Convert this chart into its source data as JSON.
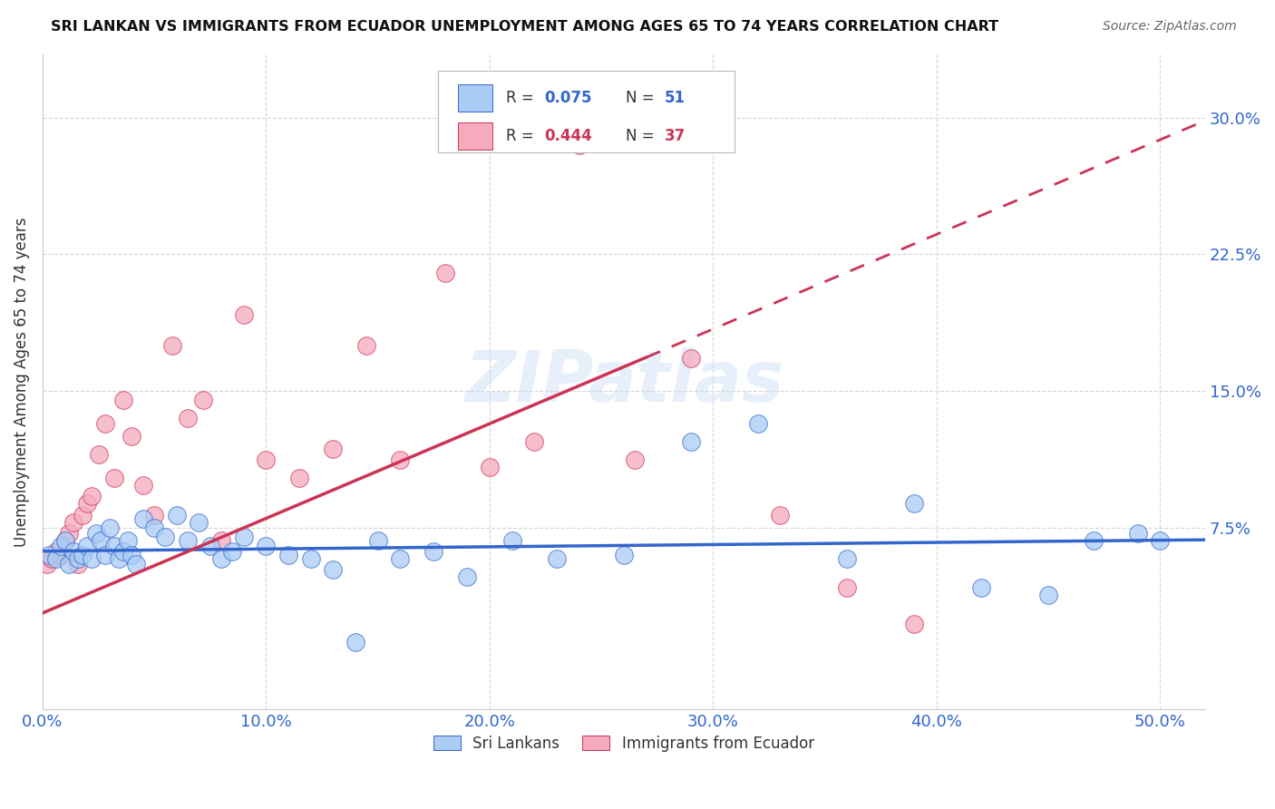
{
  "title": "SRI LANKAN VS IMMIGRANTS FROM ECUADOR UNEMPLOYMENT AMONG AGES 65 TO 74 YEARS CORRELATION CHART",
  "source": "Source: ZipAtlas.com",
  "ylabel": "Unemployment Among Ages 65 to 74 years",
  "xlim": [
    0.0,
    0.52
  ],
  "ylim": [
    -0.025,
    0.335
  ],
  "xticks": [
    0.0,
    0.1,
    0.2,
    0.3,
    0.4,
    0.5
  ],
  "xticklabels": [
    "0.0%",
    "10.0%",
    "20.0%",
    "30.0%",
    "40.0%",
    "50.0%"
  ],
  "yticks": [
    0.075,
    0.15,
    0.225,
    0.3
  ],
  "yticklabels": [
    "7.5%",
    "15.0%",
    "22.5%",
    "30.0%"
  ],
  "sri_lankan_color": "#aaccf5",
  "ecuador_color": "#f5aabe",
  "sri_lankan_line_color": "#3366cc",
  "ecuador_line_color": "#cc3355",
  "watermark": "ZIPatlas",
  "legend_label1": "Sri Lankans",
  "legend_label2": "Immigrants from Ecuador",
  "sri_lankans_x": [
    0.003,
    0.006,
    0.008,
    0.01,
    0.012,
    0.014,
    0.016,
    0.018,
    0.02,
    0.022,
    0.024,
    0.026,
    0.028,
    0.03,
    0.032,
    0.034,
    0.036,
    0.038,
    0.04,
    0.042,
    0.045,
    0.05,
    0.055,
    0.06,
    0.065,
    0.07,
    0.075,
    0.08,
    0.085,
    0.09,
    0.1,
    0.11,
    0.12,
    0.13,
    0.14,
    0.15,
    0.16,
    0.175,
    0.19,
    0.21,
    0.23,
    0.26,
    0.29,
    0.32,
    0.36,
    0.39,
    0.42,
    0.45,
    0.47,
    0.49,
    0.5
  ],
  "sri_lankans_y": [
    0.06,
    0.058,
    0.065,
    0.068,
    0.055,
    0.062,
    0.058,
    0.06,
    0.065,
    0.058,
    0.072,
    0.068,
    0.06,
    0.075,
    0.065,
    0.058,
    0.062,
    0.068,
    0.06,
    0.055,
    0.08,
    0.075,
    0.07,
    0.082,
    0.068,
    0.078,
    0.065,
    0.058,
    0.062,
    0.07,
    0.065,
    0.06,
    0.058,
    0.052,
    0.012,
    0.068,
    0.058,
    0.062,
    0.048,
    0.068,
    0.058,
    0.06,
    0.122,
    0.132,
    0.058,
    0.088,
    0.042,
    0.038,
    0.068,
    0.072,
    0.068
  ],
  "ecuador_x": [
    0.002,
    0.004,
    0.006,
    0.008,
    0.01,
    0.012,
    0.014,
    0.016,
    0.018,
    0.02,
    0.022,
    0.025,
    0.028,
    0.032,
    0.036,
    0.04,
    0.045,
    0.05,
    0.058,
    0.065,
    0.072,
    0.08,
    0.09,
    0.1,
    0.115,
    0.13,
    0.145,
    0.16,
    0.18,
    0.2,
    0.22,
    0.24,
    0.265,
    0.29,
    0.33,
    0.36,
    0.39
  ],
  "ecuador_y": [
    0.055,
    0.058,
    0.062,
    0.06,
    0.068,
    0.072,
    0.078,
    0.055,
    0.082,
    0.088,
    0.092,
    0.115,
    0.132,
    0.102,
    0.145,
    0.125,
    0.098,
    0.082,
    0.175,
    0.135,
    0.145,
    0.068,
    0.192,
    0.112,
    0.102,
    0.118,
    0.175,
    0.112,
    0.215,
    0.108,
    0.122,
    0.285,
    0.112,
    0.168,
    0.082,
    0.042,
    0.022
  ]
}
